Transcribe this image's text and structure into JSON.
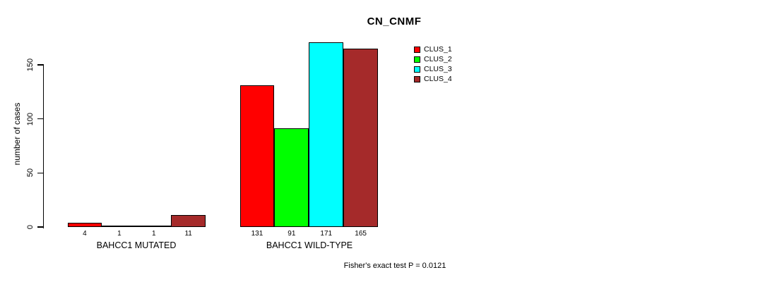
{
  "chart_data": {
    "type": "bar",
    "title": "CN_CNMF",
    "ylabel": "number of cases",
    "xlabel": "",
    "categories": [
      "BAHCC1 MUTATED",
      "BAHCC1 WILD-TYPE"
    ],
    "series": [
      {
        "name": "CLUS_1",
        "color": "#ff0000",
        "values": [
          4,
          131
        ]
      },
      {
        "name": "CLUS_2",
        "color": "#00ff00",
        "values": [
          1,
          91
        ]
      },
      {
        "name": "CLUS_3",
        "color": "#00ffff",
        "values": [
          1,
          171
        ]
      },
      {
        "name": "CLUS_4",
        "color": "#a52a2a",
        "values": [
          11,
          165
        ]
      }
    ],
    "show_bar_value_labels": true,
    "yticks": [
      0,
      50,
      100,
      150
    ],
    "ylim": [
      0,
      172
    ],
    "grid": false,
    "legend_position": "upper-right-inside",
    "legend_entries": [
      "CLUS_1",
      "CLUS_2",
      "CLUS_3",
      "CLUS_4"
    ],
    "annotation": "Fisher's exact test P = 0.0121"
  }
}
